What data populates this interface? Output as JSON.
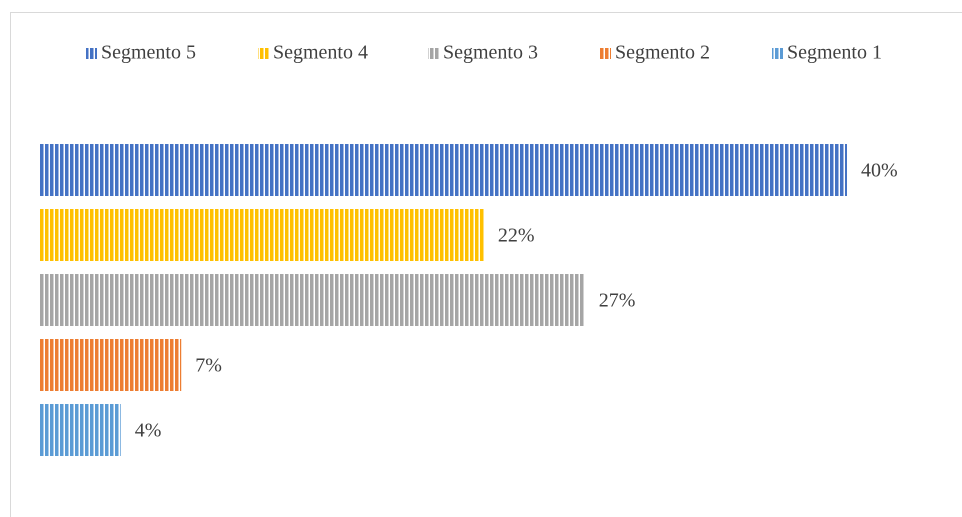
{
  "chart_data": {
    "type": "bar",
    "orientation": "horizontal",
    "legend": "top",
    "series": [
      {
        "name": "Segmento 5",
        "color": "#4472c4",
        "values": [
          40
        ],
        "value_labels": [
          "40%"
        ]
      },
      {
        "name": "Segmento 4",
        "color": "#ffc000",
        "values": [
          22
        ],
        "value_labels": [
          "22%"
        ]
      },
      {
        "name": "Segmento 3",
        "color": "#a5a5a5",
        "values": [
          27
        ],
        "value_labels": [
          "27%"
        ]
      },
      {
        "name": "Segmento 2",
        "color": "#ed7d31",
        "values": [
          7
        ],
        "value_labels": [
          "7%"
        ]
      },
      {
        "name": "Segmento 1",
        "color": "#5b9bd5",
        "values": [
          4
        ],
        "value_labels": [
          "4%"
        ]
      }
    ]
  }
}
